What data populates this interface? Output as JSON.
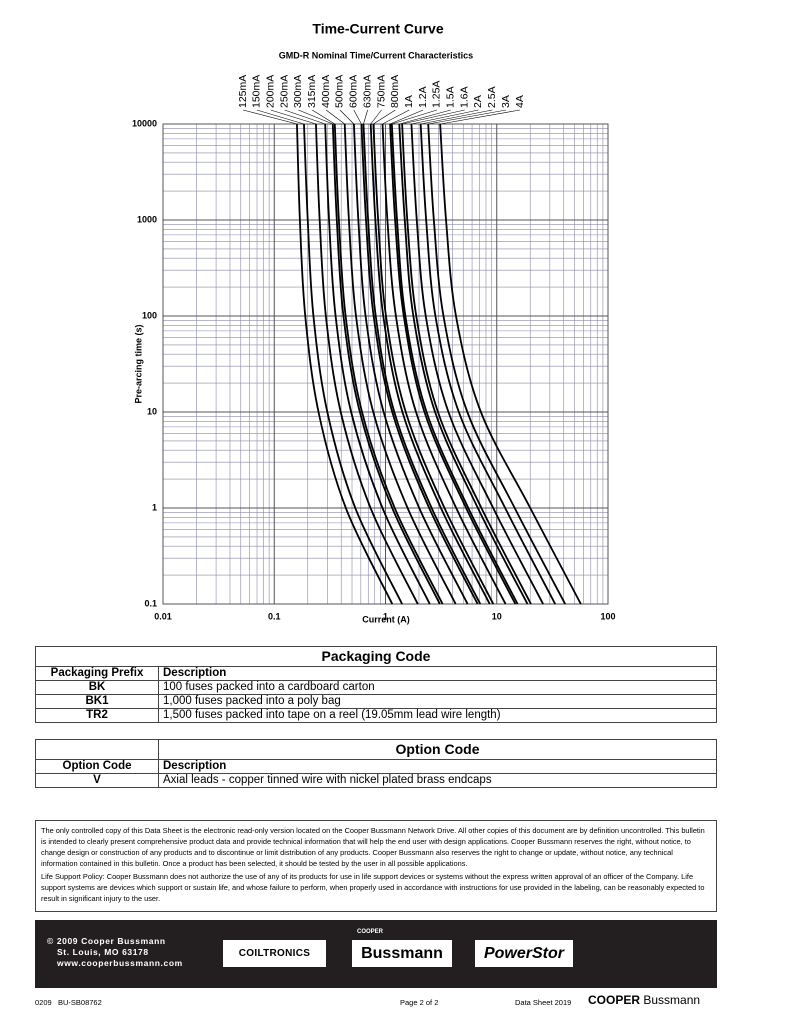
{
  "chart_data": {
    "type": "line",
    "title": "Time-Current Curve",
    "subtitle": "GMD-R Nominal Time/Current Characteristics",
    "x_label": "Current (A)",
    "y_label": "Pre-arcing time (s)",
    "log_x": true,
    "log_y": true,
    "grid": true,
    "color": "#000000",
    "xlim": [
      0.01,
      100
    ],
    "xticks": [
      0.01,
      0.1,
      1,
      10,
      100
    ],
    "ylim": [
      0.1,
      10000
    ],
    "yticks": [
      0.1,
      1,
      10,
      100,
      1000,
      10000
    ],
    "series": [
      {
        "name": "125mA",
        "x": [
          0.16,
          0.17,
          0.19,
          0.25,
          0.44,
          1.15
        ],
        "values": [
          10000,
          1000,
          100,
          10,
          1,
          0.1
        ]
      },
      {
        "name": "150mA",
        "x": [
          0.185,
          0.2,
          0.225,
          0.3,
          0.535,
          1.41
        ],
        "values": [
          10000,
          1000,
          100,
          10,
          1,
          0.1
        ]
      },
      {
        "name": "200mA",
        "x": [
          0.237,
          0.256,
          0.291,
          0.396,
          0.734,
          1.95
        ],
        "values": [
          10000,
          1000,
          100,
          10,
          1,
          0.1
        ]
      },
      {
        "name": "250mA",
        "x": [
          0.287,
          0.311,
          0.356,
          0.491,
          0.94,
          2.5
        ],
        "values": [
          10000,
          1000,
          100,
          10,
          1,
          0.1
        ]
      },
      {
        "name": "300mA",
        "x": [
          0.336,
          0.365,
          0.419,
          0.588,
          1.15,
          3.08
        ],
        "values": [
          10000,
          1000,
          100,
          10,
          1,
          0.1
        ]
      },
      {
        "name": "315mA",
        "x": [
          0.35,
          0.381,
          0.438,
          0.615,
          1.21,
          3.26
        ],
        "values": [
          10000,
          1000,
          100,
          10,
          1,
          0.1
        ]
      },
      {
        "name": "400mA",
        "x": [
          0.43,
          0.469,
          0.543,
          0.776,
          1.58,
          4.27
        ],
        "values": [
          10000,
          1000,
          100,
          10,
          1,
          0.1
        ]
      },
      {
        "name": "500mA",
        "x": [
          0.52,
          0.57,
          0.662,
          0.962,
          2.01,
          5.47
        ],
        "values": [
          10000,
          1000,
          100,
          10,
          1,
          0.1
        ]
      },
      {
        "name": "600mA",
        "x": [
          0.608,
          0.668,
          0.782,
          1.15,
          2.47,
          6.73
        ],
        "values": [
          10000,
          1000,
          100,
          10,
          1,
          0.1
        ]
      },
      {
        "name": "630mA",
        "x": [
          0.634,
          0.698,
          0.817,
          1.2,
          2.6,
          7.11
        ],
        "values": [
          10000,
          1000,
          100,
          10,
          1,
          0.1
        ]
      },
      {
        "name": "750mA",
        "x": [
          0.736,
          0.811,
          0.955,
          1.42,
          3.15,
          8.65
        ],
        "values": [
          10000,
          1000,
          100,
          10,
          1,
          0.1
        ]
      },
      {
        "name": "800mA",
        "x": [
          0.778,
          0.859,
          1.01,
          1.52,
          3.39,
          9.31
        ],
        "values": [
          10000,
          1000,
          100,
          10,
          1,
          0.1
        ]
      },
      {
        "name": "1A",
        "x": [
          0.94,
          1.04,
          1.24,
          1.88,
          4.32,
          12
        ],
        "values": [
          10000,
          1000,
          100,
          10,
          1,
          0.1
        ]
      },
      {
        "name": "1.2A",
        "x": [
          1.1,
          1.22,
          1.46,
          2.24,
          5.3,
          14.7
        ],
        "values": [
          10000,
          1000,
          100,
          10,
          1,
          0.1
        ]
      },
      {
        "name": "1.25A",
        "x": [
          1.14,
          1.27,
          1.51,
          2.34,
          5.55,
          15.4
        ],
        "values": [
          10000,
          1000,
          100,
          10,
          1,
          0.1
        ]
      },
      {
        "name": "1.5A",
        "x": [
          1.33,
          1.49,
          1.78,
          2.79,
          6.76,
          18.9
        ],
        "values": [
          10000,
          1000,
          100,
          10,
          1,
          0.1
        ]
      },
      {
        "name": "1.6A",
        "x": [
          1.41,
          1.57,
          1.89,
          2.96,
          7.28,
          20.3
        ],
        "values": [
          10000,
          1000,
          100,
          10,
          1,
          0.1
        ]
      },
      {
        "name": "2A",
        "x": [
          1.71,
          1.91,
          2.3,
          3.68,
          9.29,
          26.1
        ],
        "values": [
          10000,
          1000,
          100,
          10,
          1,
          0.1
        ]
      },
      {
        "name": "2.5A",
        "x": [
          2.07,
          2.32,
          2.81,
          4.56,
          11.9,
          33.5
        ],
        "values": [
          10000,
          1000,
          100,
          10,
          1,
          0.1
        ]
      },
      {
        "name": "3A",
        "x": [
          2.42,
          2.72,
          3.32,
          5.44,
          14.5,
          41.2
        ],
        "values": [
          10000,
          1000,
          100,
          10,
          1,
          0.1
        ]
      },
      {
        "name": "4A",
        "x": [
          3.1,
          3.5,
          4.3,
          7.2,
          20,
          57
        ],
        "values": [
          10000,
          1000,
          100,
          10,
          1,
          0.1
        ]
      }
    ]
  },
  "packaging": {
    "title": "Packaging Code",
    "header": [
      "Packaging Prefix",
      "Description"
    ],
    "rows": [
      [
        "BK",
        "100 fuses packed into a cardboard carton"
      ],
      [
        "BK1",
        "1,000 fuses packed into a poly bag"
      ],
      [
        "TR2",
        "1,500 fuses packed into tape on a reel (19.05mm lead wire length)"
      ]
    ]
  },
  "option": {
    "title": "Option Code",
    "header": [
      "Option Code",
      "Description"
    ],
    "rows": [
      [
        "V",
        "Axial leads - copper tinned wire with nickel plated brass endcaps"
      ]
    ]
  },
  "disclaimer": [
    "The only controlled copy of this Data Sheet is the electronic read-only version located on the Cooper Bussmann Network Drive. All other copies of this document are by definition uncontrolled. This bulletin is intended to clearly present comprehensive product data and provide technical information that will help the end user with design applications. Cooper Bussmann reserves the right, without notice, to change design or construction of any products and to discontinue or limit distribution of any products. Cooper Bussmann also reserves the right to change or update, without notice, any technical information contained in this bulletin. Once a product has been selected, it should be tested by the user in all possible applications.",
    "Life Support Policy: Cooper Bussmann does not authorize the use of any of its products for use in life support devices or systems without the express written approval of an officer of the Company. Life support systems are devices which support or sustain life, and whose failure to perform, when properly used in accordance with instructions for use provided in the labeling, can be reasonably expected to result in significant injury to the user."
  ],
  "footer": {
    "address": [
      "© 2009 Cooper Bussmann",
      "St. Louis, MO 63178",
      "www.cooperbussmann.com"
    ],
    "logos": {
      "coiltronics": "COILTRONICS",
      "cooper": "COOPER",
      "bussmann": "Bussmann",
      "powerstor": "PowerStor"
    },
    "code": "0209",
    "doc": "BU-SB08762",
    "page": "Page 2 of 2",
    "sheet": "Data Sheet 2019",
    "brand_a": "COOPER",
    "brand_b": "Bussmann"
  }
}
